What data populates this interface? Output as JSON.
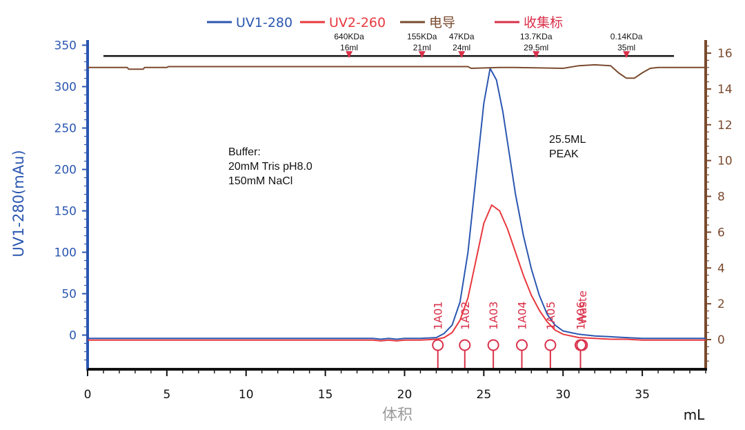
{
  "colors": {
    "uv280": "#2a56b0",
    "uv260": "#e8383d",
    "conductivity": "#7a4a2e",
    "marker": "#d9304a",
    "axis": "#111111",
    "xlabel": "#9a9a9a"
  },
  "chart_data": {
    "type": "line",
    "xlabel": "体积",
    "xunit": "mL",
    "ylabel_left": "UV1-280(mAu)",
    "ylim_left": [
      -35,
      355
    ],
    "yticks_left": [
      350,
      300,
      250,
      200,
      150,
      100,
      50,
      0
    ],
    "ylim_right": [
      -1.4,
      16.8
    ],
    "yticks_right": [
      16,
      14,
      12,
      10,
      8,
      6,
      4,
      2,
      0
    ],
    "xlim": [
      0,
      39
    ],
    "xticks": [
      0,
      5,
      10,
      15,
      20,
      25,
      30,
      35
    ],
    "legend": {
      "placement": "top-center",
      "items": [
        {
          "label": "UV1-280",
          "color": "#2a56b0"
        },
        {
          "label": "UV2-260",
          "color": "#e8383d"
        },
        {
          "label": "电导",
          "color": "#7a4a2e"
        },
        {
          "label": "收集标",
          "color": "#d9304a"
        }
      ]
    },
    "series": [
      {
        "name": "UV1-280",
        "axis": "left",
        "x": [
          0,
          18,
          18.5,
          19,
          19.5,
          20,
          21,
          22,
          22.5,
          23,
          23.5,
          24,
          24.5,
          25,
          25.4,
          25.8,
          26.2,
          26.6,
          27,
          27.5,
          28,
          28.5,
          29,
          29.5,
          30,
          31,
          32,
          33,
          34,
          35,
          39
        ],
        "y": [
          -4,
          -4,
          -5,
          -4,
          -5,
          -4,
          -4,
          -3,
          2,
          12,
          40,
          100,
          190,
          280,
          322,
          308,
          270,
          220,
          170,
          120,
          80,
          48,
          25,
          12,
          5,
          1,
          -1,
          -2,
          -3,
          -4,
          -4
        ]
      },
      {
        "name": "UV2-260",
        "axis": "left",
        "x": [
          0,
          18,
          18.5,
          19,
          19.5,
          20,
          21,
          22,
          22.5,
          23,
          23.5,
          24,
          24.5,
          25,
          25.5,
          26,
          26.5,
          27,
          27.5,
          28,
          28.5,
          29,
          29.5,
          30,
          31,
          32,
          33,
          34,
          35,
          39
        ],
        "y": [
          -6,
          -6,
          -7,
          -6,
          -7,
          -6,
          -6,
          -5,
          -3,
          3,
          18,
          45,
          90,
          135,
          157,
          150,
          128,
          100,
          72,
          48,
          30,
          16,
          6,
          1,
          -3,
          -4,
          -5,
          -5,
          -6,
          -6
        ],
        "note_label": ""
      },
      {
        "name": "电导",
        "axis": "right",
        "x": [
          0,
          2.5,
          2.6,
          3.5,
          3.6,
          5,
          5.1,
          24,
          24.2,
          26,
          27,
          30,
          31,
          32,
          33,
          33.5,
          34,
          34.5,
          35,
          35.5,
          36,
          39
        ],
        "y": [
          15.2,
          15.2,
          15.1,
          15.1,
          15.2,
          15.2,
          15.25,
          15.25,
          15.15,
          15.2,
          15.2,
          15.15,
          15.3,
          15.35,
          15.3,
          14.9,
          14.6,
          14.6,
          14.9,
          15.15,
          15.2,
          15.2
        ]
      }
    ],
    "fractions": [
      {
        "label": "1A01",
        "x": 22.1
      },
      {
        "label": "1A02",
        "x": 23.8
      },
      {
        "label": "1A03",
        "x": 25.6
      },
      {
        "label": "1A04",
        "x": 27.4
      },
      {
        "label": "1A05",
        "x": 29.2
      },
      {
        "label": "1A06",
        "x": 31.1
      },
      {
        "label": "Waste",
        "x": 31.2
      }
    ],
    "calibration": [
      {
        "mw": "640KDa",
        "vol": "16ml",
        "x": 16.5
      },
      {
        "mw": "155KDa",
        "vol": "21ml",
        "x": 21.1
      },
      {
        "mw": "47KDa",
        "vol": "24ml",
        "x": 23.6
      },
      {
        "mw": "13.7KDa",
        "vol": "29.5ml",
        "x": 28.3
      },
      {
        "mw": "0.14KDa",
        "vol": "35ml",
        "x": 34.0
      }
    ],
    "calibration_line": {
      "x_start": 1,
      "x_end": 37,
      "y": 337
    },
    "annotations": {
      "buffer": [
        "Buffer:",
        "20mM Tris pH8.0",
        "150mM NaCl"
      ],
      "peak": [
        "25.5ML",
        "PEAK"
      ]
    }
  }
}
